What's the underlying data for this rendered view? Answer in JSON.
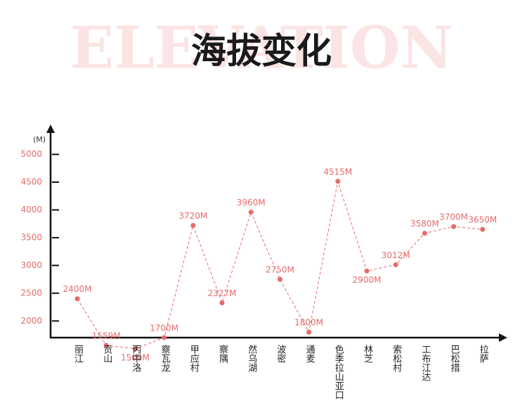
{
  "chart_data": {
    "type": "line",
    "title": "海拔变化",
    "background_text": "ELEVATION",
    "y_label": "(M)",
    "categories": [
      "丽江",
      "贡山",
      "丙中洛",
      "察瓦龙",
      "甲应村",
      "察隅",
      "然乌湖",
      "波密",
      "通麦",
      "色季拉山亚口",
      "林芝",
      "索松村",
      "工布江达",
      "巴松措",
      "拉萨"
    ],
    "series": [
      {
        "name": "海拔",
        "color": "#e66a6a",
        "values": [
          2400,
          1559,
          1500,
          1700,
          3720,
          2327,
          3960,
          2750,
          1800,
          4515,
          2900,
          3012,
          3580,
          3700,
          3650
        ],
        "value_labels": [
          "2400M",
          "1559M",
          "1500M",
          "1700M",
          "3720M",
          "2327M",
          "3960M",
          "2750M",
          "1800M",
          "4515M",
          "2900M",
          "3012M",
          "3580M",
          "3700M",
          "3650M"
        ]
      }
    ],
    "ylim": [
      1700,
      5500
    ],
    "yticks": [
      2000,
      2500,
      3000,
      3500,
      4000,
      4500,
      5000
    ]
  }
}
